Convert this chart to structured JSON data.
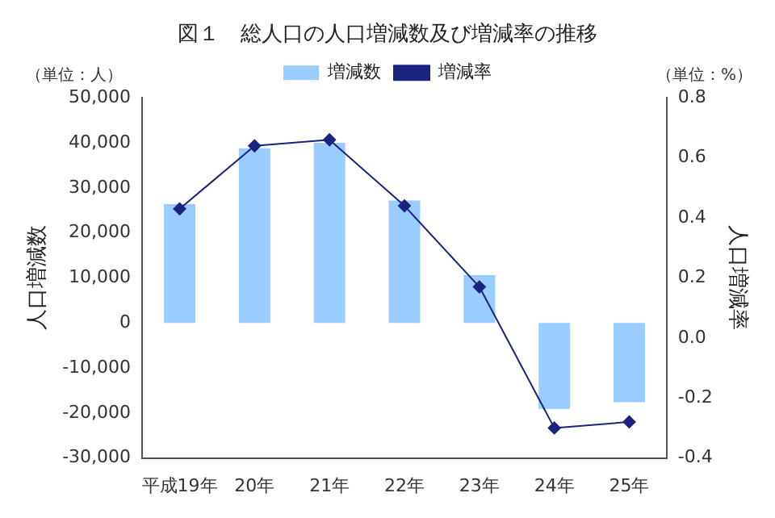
{
  "chart_data": {
    "type": "bar",
    "title": "図１　総人口の人口増減数及び増減率の推移",
    "categories": [
      "平成19年",
      "20年",
      "21年",
      "22年",
      "23年",
      "24年",
      "25年"
    ],
    "series": [
      {
        "name": "増減数",
        "color": "#99ccff",
        "values": [
          26400,
          38800,
          40000,
          27200,
          10600,
          -19100,
          -17600
        ]
      },
      {
        "name": "増減率",
        "type": "line",
        "axis": "y2",
        "color": "#1a237e",
        "values": [
          0.43,
          0.64,
          0.66,
          0.44,
          0.17,
          -0.3,
          -0.28
        ]
      }
    ],
    "ylabel": "人口増減数",
    "y2label": "人口増減率",
    "ylim": [
      -30000,
      50000
    ],
    "yticks": [
      {
        "value": -30000,
        "label": "-30,000"
      },
      {
        "value": -20000,
        "label": "-20,000"
      },
      {
        "value": -10000,
        "label": "-10,000"
      },
      {
        "value": 0,
        "label": "0"
      },
      {
        "value": 10000,
        "label": "10,000"
      },
      {
        "value": 20000,
        "label": "20,000"
      },
      {
        "value": 30000,
        "label": "30,000"
      },
      {
        "value": 40000,
        "label": "40,000"
      },
      {
        "value": 50000,
        "label": "50,000"
      }
    ],
    "y2lim": [
      -0.4,
      0.8
    ],
    "y2ticks": [
      -0.4,
      -0.2,
      {
        "value": 0,
        "label": "0.0"
      },
      0.2,
      0.4,
      0.6,
      0.8
    ],
    "annotations": [
      "（単位：人）",
      "（単位：%）"
    ],
    "legend": "top",
    "grid": false,
    "marker": "diamond"
  }
}
